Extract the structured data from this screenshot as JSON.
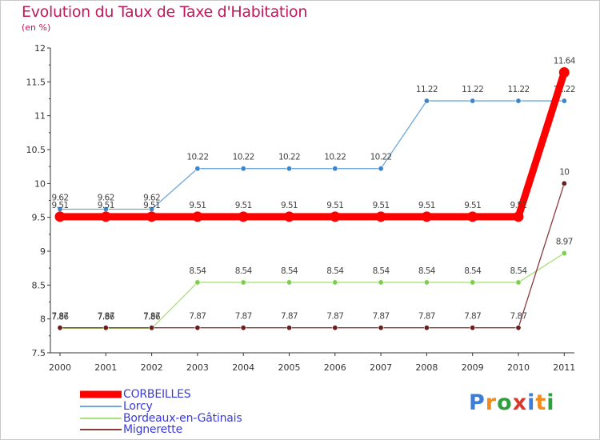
{
  "title": "Evolution du Taux de Taxe d'Habitation",
  "subtitle": "(en %)",
  "logo": {
    "text": "Proxiti",
    "colors": [
      "#3b7dd8",
      "#f28c1e",
      "#2e9e3e",
      "#d63a2f",
      "#3b7dd8",
      "#f28c1e",
      "#2e9e3e"
    ]
  },
  "chart_data": {
    "type": "line",
    "title": "Evolution du Taux de Taxe d'Habitation",
    "ylabel": "(en %)",
    "xlabel": "",
    "ylim": [
      7.5,
      12
    ],
    "yticks": [
      "7.5",
      "8",
      "8.5",
      "9",
      "9.5",
      "10",
      "10.5",
      "11",
      "11.5",
      "12"
    ],
    "categories": [
      "2000",
      "2001",
      "2002",
      "2003",
      "2004",
      "2005",
      "2006",
      "2007",
      "2008",
      "2009",
      "2010",
      "2011"
    ],
    "series": [
      {
        "name": "Lorcy",
        "color": "#6fa8dc",
        "marker": "#3d85c6",
        "values": [
          9.62,
          9.62,
          9.62,
          10.22,
          10.22,
          10.22,
          10.22,
          10.22,
          11.22,
          11.22,
          11.22,
          11.22
        ],
        "labels": [
          "9.62",
          "9.62",
          "9.62",
          "10.22",
          "10.22",
          "10.22",
          "10.22",
          "10.22",
          "11.22",
          "11.22",
          "11.22",
          "11.22"
        ]
      },
      {
        "name": "Bordeaux-en-Gâtinais",
        "color": "#a8e07a",
        "marker": "#7ccf4a",
        "values": [
          7.86,
          7.86,
          7.86,
          8.54,
          8.54,
          8.54,
          8.54,
          8.54,
          8.54,
          8.54,
          8.54,
          8.97
        ],
        "labels": [
          "7.86",
          "7.86",
          "7.86",
          "8.54",
          "8.54",
          "8.54",
          "8.54",
          "8.54",
          "8.54",
          "8.54",
          "8.54",
          "8.97"
        ]
      },
      {
        "name": "Mignerette",
        "color": "#8b3a3a",
        "marker": "#6b1d1d",
        "values": [
          7.87,
          7.87,
          7.87,
          7.87,
          7.87,
          7.87,
          7.87,
          7.87,
          7.87,
          7.87,
          7.87,
          10
        ],
        "labels": [
          "7.87",
          "7.87",
          "7.87",
          "7.87",
          "7.87",
          "7.87",
          "7.87",
          "7.87",
          "7.87",
          "7.87",
          "7.87",
          "10"
        ]
      },
      {
        "name": "CORBEILLES",
        "color": "#ff0000",
        "marker": "#ff0000",
        "bold": true,
        "values": [
          9.51,
          9.51,
          9.51,
          9.51,
          9.51,
          9.51,
          9.51,
          9.51,
          9.51,
          9.51,
          9.51,
          11.64
        ],
        "labels": [
          "9.51",
          "9.51",
          "9.51",
          "9.51",
          "9.51",
          "9.51",
          "9.51",
          "9.51",
          "9.51",
          "9.51",
          "9.51",
          "11.64"
        ]
      }
    ],
    "legend": [
      "CORBEILLES",
      "Lorcy",
      "Bordeaux-en-Gâtinais",
      "Mignerette"
    ],
    "grid": false,
    "legend_position": "bottom-left"
  }
}
